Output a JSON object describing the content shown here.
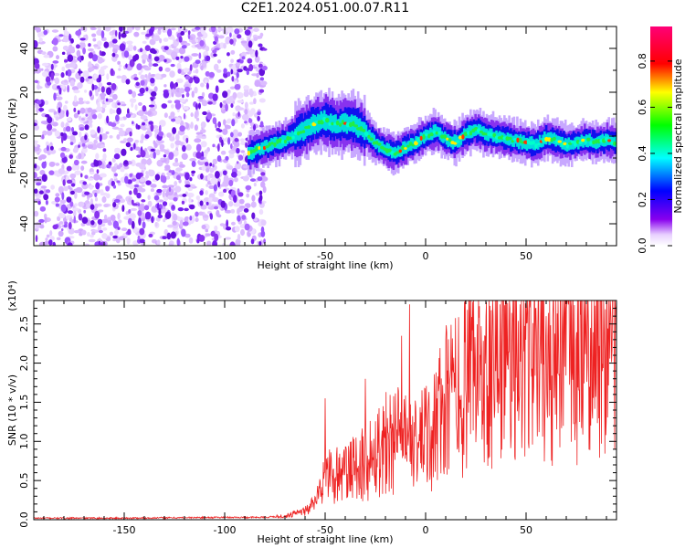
{
  "title": "C2E1.2024.051.00.07.R11",
  "colors": {
    "snr_line": "#ee2222",
    "axis": "#000000",
    "noise_dot": "#8833ee"
  },
  "chart_data": [
    {
      "type": "heatmap",
      "title": "",
      "xlabel": "Height of straight line (km)",
      "ylabel": "Frequency (Hz)",
      "xlim": [
        -195,
        95
      ],
      "ylim": [
        -50,
        50
      ],
      "x_ticks": [
        -150,
        -100,
        -50,
        0,
        50
      ],
      "y_ticks": [
        -40,
        -20,
        0,
        20,
        40
      ],
      "colorbar": {
        "label": "Normalized spectral amplitude",
        "range": [
          0,
          0.95
        ],
        "ticks": [
          "0.0",
          "0.2",
          "0.4",
          "0.6",
          "0.8"
        ],
        "tick_values": [
          0,
          0.2,
          0.4,
          0.6,
          0.8
        ],
        "colormap": "rainbow (white-purple-blue-cyan-green-yellow-red-magenta)"
      },
      "noise_region_x": [
        -195,
        -80
      ],
      "signal_centerline": {
        "x": [
          -88,
          -80,
          -70,
          -62,
          -55,
          -50,
          -45,
          -40,
          -35,
          -30,
          -25,
          -20,
          -15,
          -10,
          -5,
          0,
          5,
          10,
          15,
          20,
          25,
          30,
          35,
          40,
          45,
          50,
          55,
          60,
          65,
          70,
          75,
          80,
          85,
          90,
          95
        ],
        "y": [
          -8,
          -5,
          -2,
          2,
          6,
          7,
          5,
          6,
          5,
          2,
          -3,
          -6,
          -8,
          -5,
          -3,
          0,
          2,
          -1,
          -3,
          1,
          3,
          1,
          0,
          -1,
          -2,
          -3,
          -4,
          -1,
          -2,
          -4,
          -3,
          -2,
          -3,
          -2,
          -3
        ]
      }
    },
    {
      "type": "line",
      "title": "",
      "xlabel": "Height of straight line (km)",
      "ylabel": "SNR (10 * v/v)",
      "scale_label": "(x10⁴)",
      "xlim": [
        -195,
        95
      ],
      "ylim": [
        0,
        2.8
      ],
      "x_ticks": [
        -150,
        -100,
        -50,
        0,
        50
      ],
      "y_ticks": [
        0,
        0.5,
        1.0,
        1.5,
        2.0,
        2.5
      ],
      "y_tick_labels": [
        "0.0",
        "0.5",
        "1.0",
        "1.5",
        "2.0",
        "2.5"
      ],
      "series": [
        {
          "x": [
            -195,
            -150,
            -100,
            -80,
            -70,
            -60,
            -55,
            -50,
            -45,
            -40,
            -35,
            -30,
            -25,
            -20,
            -15,
            -10,
            -5,
            0,
            10,
            20,
            30,
            40,
            50,
            60,
            70,
            80,
            90,
            95
          ],
          "y": [
            0.02,
            0.02,
            0.03,
            0.03,
            0.05,
            0.12,
            0.2,
            0.55,
            0.5,
            0.45,
            0.5,
            0.55,
            0.65,
            0.75,
            0.8,
            0.7,
            0.75,
            0.75,
            1.1,
            1.3,
            1.5,
            1.6,
            1.65,
            1.65,
            1.7,
            1.65,
            1.65,
            1.7
          ],
          "peaks_x": [
            -50,
            -30,
            -12,
            -8,
            10,
            30,
            37,
            42,
            47,
            55,
            60,
            66,
            70,
            75,
            82,
            92
          ],
          "peaks_y": [
            1.55,
            1.8,
            2.35,
            2.75,
            2.3,
            2.6,
            2.75,
            2.7,
            2.75,
            2.7,
            2.6,
            2.8,
            2.7,
            2.3,
            2.45,
            2.7
          ]
        }
      ]
    }
  ]
}
